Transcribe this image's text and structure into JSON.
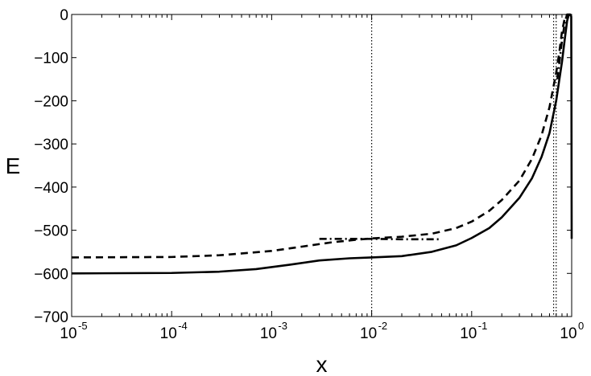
{
  "chart_data": {
    "type": "line",
    "title": "",
    "xlabel": "x",
    "ylabel": "E",
    "xscale": "log",
    "xlim": [
      1e-05,
      1
    ],
    "ylim": [
      -700,
      0
    ],
    "grid": false,
    "legend": "none",
    "xticks": [
      {
        "value": 1e-05,
        "base": "10",
        "exp": "-5"
      },
      {
        "value": 0.0001,
        "base": "10",
        "exp": "-4"
      },
      {
        "value": 0.001,
        "base": "10",
        "exp": "-3"
      },
      {
        "value": 0.01,
        "base": "10",
        "exp": "-2"
      },
      {
        "value": 0.1,
        "base": "10",
        "exp": "-1"
      },
      {
        "value": 1,
        "base": "10",
        "exp": "0"
      }
    ],
    "yticks": [
      {
        "value": 0,
        "label": "0"
      },
      {
        "value": -100,
        "label": "−100"
      },
      {
        "value": -200,
        "label": "−200"
      },
      {
        "value": -300,
        "label": "−300"
      },
      {
        "value": -400,
        "label": "−400"
      },
      {
        "value": -500,
        "label": "−500"
      },
      {
        "value": -600,
        "label": "−600"
      },
      {
        "value": -700,
        "label": "−700"
      }
    ],
    "series": [
      {
        "style": "solid",
        "color": "#000000",
        "x": [
          1e-05,
          0.0001,
          0.0003,
          0.0007,
          0.0015,
          0.003,
          0.006,
          0.01,
          0.02,
          0.04,
          0.07,
          0.1,
          0.15,
          0.2,
          0.3,
          0.4,
          0.5,
          0.6,
          0.7,
          0.8,
          0.85,
          0.9,
          0.93,
          0.95,
          0.97,
          0.99,
          0.995,
          1.0
        ],
        "y": [
          -600,
          -599,
          -596,
          -590,
          -580,
          -570,
          -565,
          -563,
          -560,
          -550,
          -535,
          -518,
          -495,
          -470,
          -425,
          -380,
          -330,
          -275,
          -200,
          -110,
          -60,
          -15,
          -3,
          0,
          0,
          -5,
          -200,
          -520
        ]
      },
      {
        "style": "dashed",
        "color": "#000000",
        "x": [
          1e-05,
          0.0001,
          0.0003,
          0.001,
          0.002,
          0.004,
          0.007,
          0.01,
          0.02,
          0.04,
          0.07,
          0.1,
          0.15,
          0.2,
          0.3,
          0.4,
          0.5,
          0.6,
          0.7,
          0.75,
          0.8,
          0.85,
          0.9,
          0.95
        ],
        "y": [
          -563,
          -562,
          -558,
          -548,
          -538,
          -528,
          -522,
          -519,
          -515,
          -508,
          -495,
          -480,
          -455,
          -430,
          -385,
          -335,
          -280,
          -215,
          -135,
          -90,
          -40,
          -10,
          0,
          0
        ]
      },
      {
        "style": "dashdot",
        "color": "#000000",
        "x": [
          0.003,
          0.01,
          0.02,
          0.047
        ],
        "y": [
          -520,
          -520,
          -521,
          -521
        ]
      },
      {
        "style": "dashdot",
        "color": "#000000",
        "x": [
          0.72,
          0.8,
          0.86,
          0.9
        ],
        "y": [
          -150,
          -60,
          -15,
          0
        ]
      }
    ],
    "vlines": [
      {
        "x": 0.01,
        "style": "dotted"
      },
      {
        "x": 0.66,
        "style": "dotted"
      },
      {
        "x": 0.7,
        "style": "dotted"
      }
    ]
  }
}
